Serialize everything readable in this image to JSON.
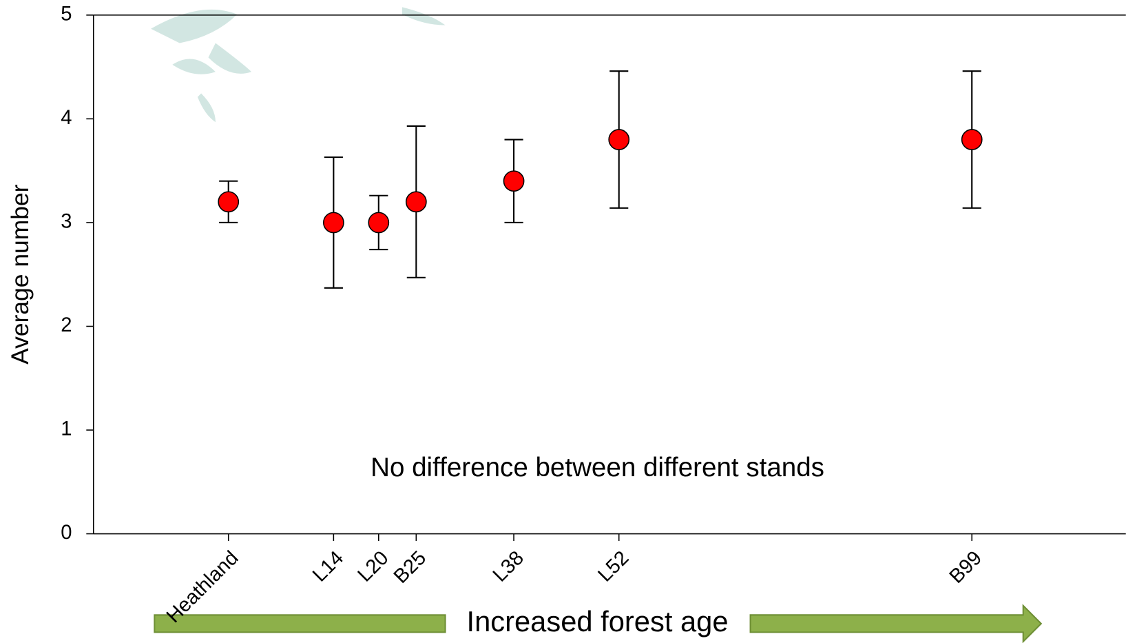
{
  "chart_data": {
    "type": "scatter",
    "y_label": "Average number",
    "categories": [
      "Heathland",
      "L14",
      "L20",
      "B25",
      "L38",
      "L52",
      "B99"
    ],
    "values": [
      3.2,
      3.0,
      3.0,
      3.2,
      3.4,
      3.8,
      3.8
    ],
    "errors": [
      0.2,
      0.63,
      0.26,
      0.73,
      0.4,
      0.66,
      0.66
    ],
    "color": "#ff0000",
    "ylim": [
      0,
      5
    ],
    "yticks": [
      0,
      1,
      2,
      3,
      4,
      5
    ],
    "annotations": [
      "No difference between different stands",
      "Increased forest age"
    ]
  }
}
